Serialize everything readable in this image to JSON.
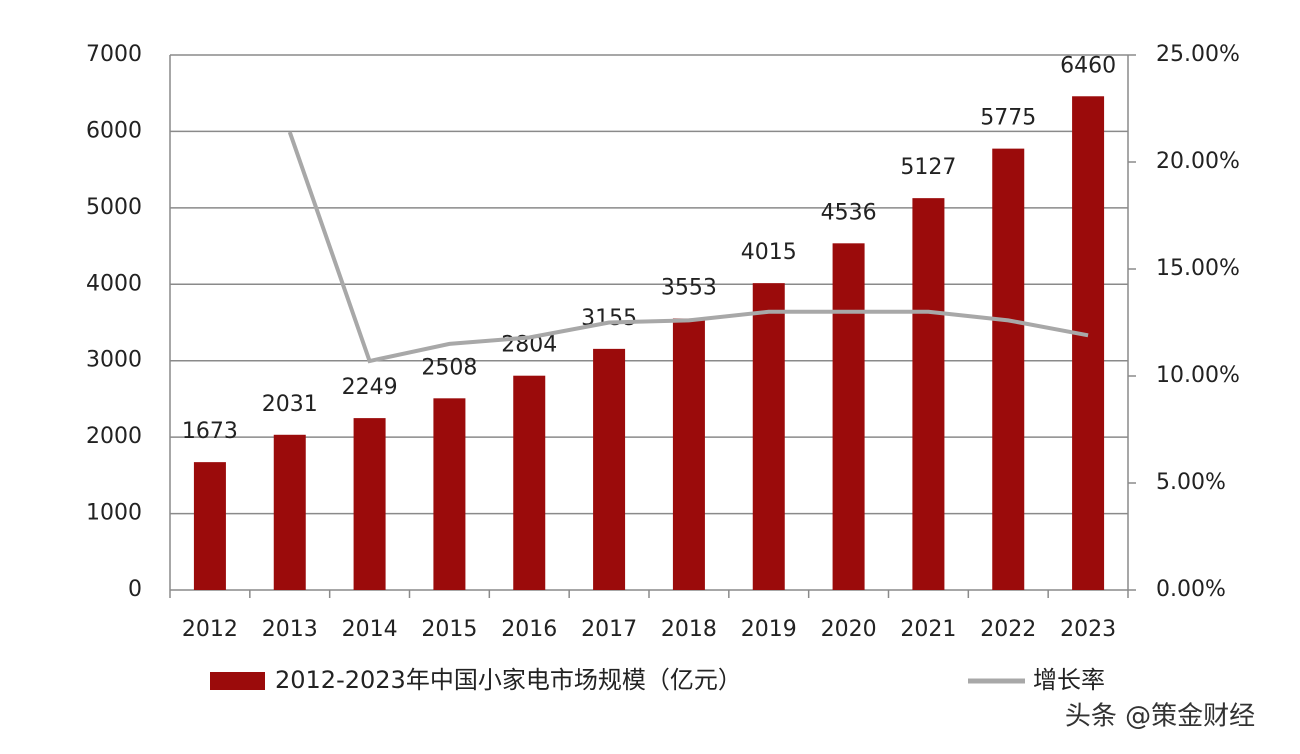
{
  "chart_data": {
    "type": "bar",
    "categories": [
      "2012",
      "2013",
      "2014",
      "2015",
      "2016",
      "2017",
      "2018",
      "2019",
      "2020",
      "2021",
      "2022",
      "2023"
    ],
    "series": [
      {
        "name": "2012-2023年中国小家电市场规模（亿元）",
        "type": "bar",
        "color": "#9b0b0b",
        "values": [
          1673,
          2031,
          2249,
          2508,
          2804,
          3155,
          3553,
          4015,
          4536,
          5127,
          5775,
          6460
        ]
      },
      {
        "name": "增长率",
        "type": "line",
        "axis": "y2",
        "color": "#a8a8a8",
        "values": [
          null,
          21.4,
          10.7,
          11.5,
          11.8,
          12.5,
          12.6,
          13.0,
          13.0,
          13.0,
          12.6,
          11.9
        ]
      }
    ],
    "ylim": [
      0,
      7000
    ],
    "yticks": [
      0,
      1000,
      2000,
      3000,
      4000,
      5000,
      6000,
      7000
    ],
    "y2lim": [
      0,
      25
    ],
    "y2ticks": [
      {
        "value": 0,
        "label": "0.00%"
      },
      {
        "value": 5,
        "label": "5.00%"
      },
      {
        "value": 10,
        "label": "10.00%"
      },
      {
        "value": 15,
        "label": "15.00%"
      },
      {
        "value": 20,
        "label": "20.00%"
      },
      {
        "value": 25,
        "label": "25.00%"
      }
    ],
    "grid": true,
    "legend": "bottom",
    "watermark": "头条 @策金财经"
  }
}
